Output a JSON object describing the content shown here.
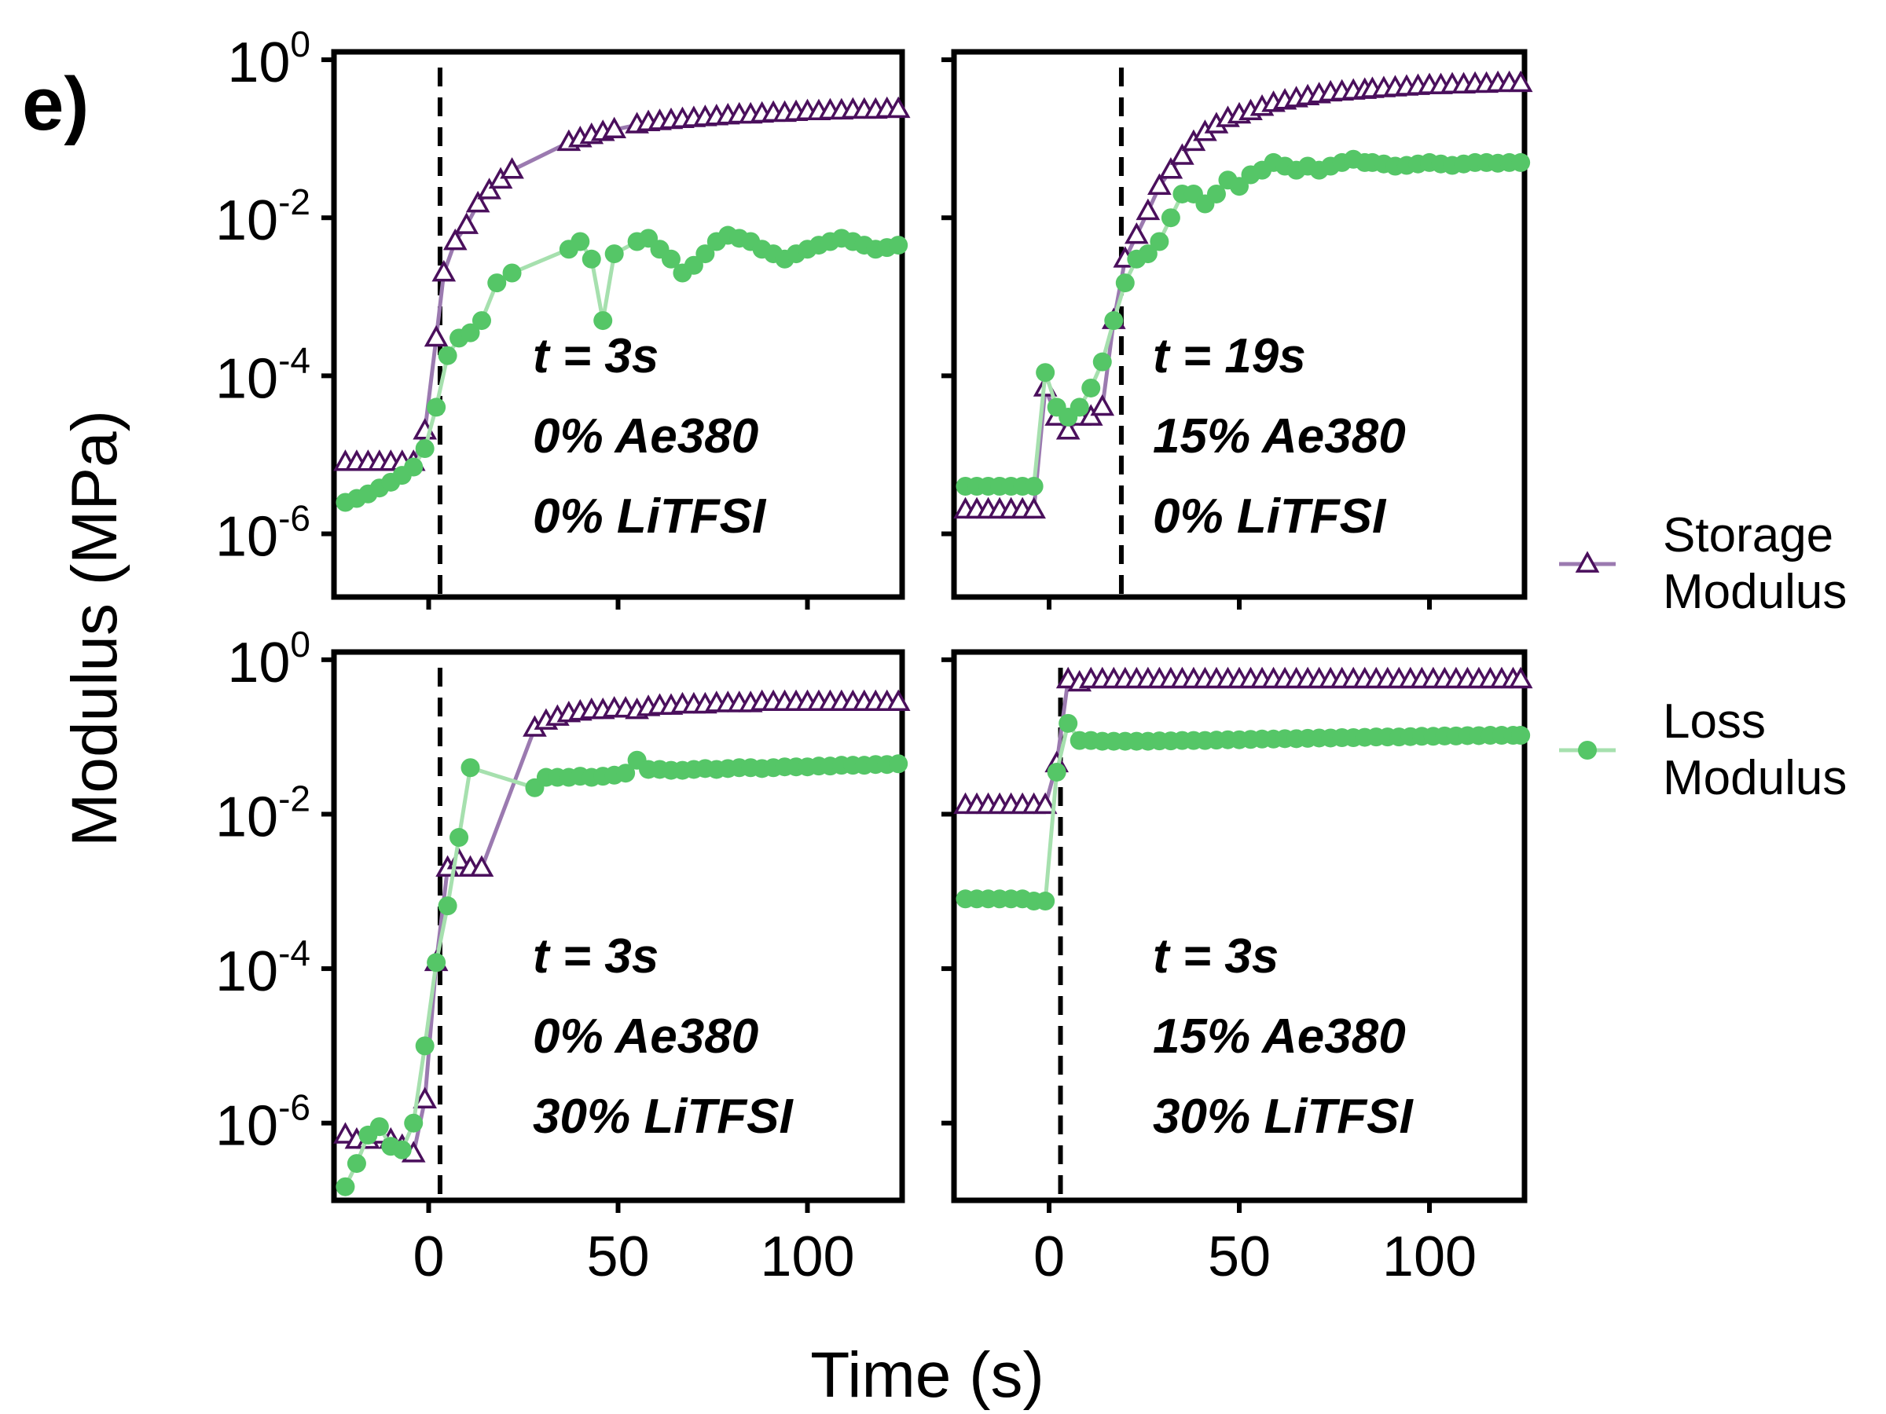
{
  "figure": {
    "panel_letter": "e)",
    "ylabel": "Modulus (MPa)",
    "xlabel": "Time (s)"
  },
  "colors": {
    "storage": "#4a0f5c",
    "storage_line": "#9b7ab0",
    "loss": "#55c667",
    "loss_line": "#a6e0ae",
    "frame": "#000000"
  },
  "legend": {
    "storage": [
      "Storage",
      "Modulus"
    ],
    "loss": [
      "Loss",
      "Modulus"
    ]
  },
  "chart_data": [
    {
      "type": "line",
      "panel": "top-left",
      "xlim": [
        -25,
        125
      ],
      "ylim_log10": [
        -6.8,
        0.1
      ],
      "yscale": "log",
      "yticks": [
        "10^0",
        "10^-2",
        "10^-4",
        "10^-6"
      ],
      "xticks": [],
      "vline_x": 3,
      "annotations": [
        "t = 3s",
        "0% Ae380",
        "0% LiTFSI"
      ],
      "series": [
        {
          "name": "Storage Modulus",
          "x": [
            -22,
            -19,
            -16,
            -13,
            -10,
            -7,
            -4,
            -1,
            2,
            4,
            7,
            10,
            13,
            16,
            19,
            22,
            37,
            40,
            43,
            46,
            49,
            55,
            58,
            61,
            64,
            67,
            70,
            73,
            76,
            79,
            82,
            85,
            88,
            91,
            94,
            97,
            100,
            103,
            106,
            109,
            112,
            115,
            118,
            121,
            124
          ],
          "y": [
            8e-06,
            8e-06,
            8e-06,
            8e-06,
            8e-06,
            8e-06,
            8e-06,
            2e-05,
            0.0003,
            0.002,
            0.005,
            0.008,
            0.015,
            0.022,
            0.03,
            0.04,
            0.09,
            0.1,
            0.11,
            0.12,
            0.13,
            0.15,
            0.16,
            0.165,
            0.17,
            0.175,
            0.18,
            0.185,
            0.19,
            0.195,
            0.2,
            0.2,
            0.205,
            0.21,
            0.21,
            0.215,
            0.22,
            0.22,
            0.225,
            0.225,
            0.23,
            0.23,
            0.23,
            0.235,
            0.235
          ]
        },
        {
          "name": "Loss Modulus",
          "x": [
            -22,
            -19,
            -16,
            -13,
            -10,
            -7,
            -4,
            -1,
            2,
            5,
            8,
            11,
            14,
            18,
            22,
            37,
            40,
            43,
            46,
            49,
            55,
            58,
            61,
            64,
            67,
            70,
            73,
            76,
            79,
            82,
            85,
            88,
            91,
            94,
            97,
            100,
            103,
            106,
            109,
            112,
            115,
            118,
            121,
            124
          ],
          "y": [
            2.5e-06,
            2.8e-06,
            3.2e-06,
            3.8e-06,
            4.5e-06,
            5.5e-06,
            7e-06,
            1.2e-05,
            4e-05,
            0.00018,
            0.0003,
            0.00035,
            0.0005,
            0.0015,
            0.002,
            0.004,
            0.005,
            0.003,
            0.0005,
            0.0035,
            0.005,
            0.0055,
            0.004,
            0.003,
            0.002,
            0.0025,
            0.0035,
            0.005,
            0.006,
            0.0055,
            0.005,
            0.004,
            0.0035,
            0.003,
            0.0035,
            0.004,
            0.0045,
            0.005,
            0.0055,
            0.005,
            0.0045,
            0.004,
            0.0042,
            0.0045
          ]
        }
      ]
    },
    {
      "type": "line",
      "panel": "top-right",
      "xlim": [
        -25,
        125
      ],
      "ylim_log10": [
        -6.8,
        0.1
      ],
      "yscale": "log",
      "yticks": [],
      "xticks": [],
      "vline_x": 19,
      "annotations": [
        "t = 19s",
        "15% Ae380",
        "0% LiTFSI"
      ],
      "series": [
        {
          "name": "Storage Modulus",
          "x": [
            -22,
            -19,
            -16,
            -13,
            -10,
            -7,
            -4,
            -1,
            2,
            5,
            8,
            11,
            14,
            17,
            20,
            23,
            26,
            29,
            32,
            35,
            38,
            41,
            44,
            47,
            50,
            53,
            56,
            59,
            62,
            65,
            68,
            71,
            74,
            77,
            80,
            83,
            85,
            88,
            91,
            94,
            97,
            100,
            103,
            106,
            109,
            112,
            115,
            118,
            121,
            124
          ],
          "y": [
            2e-06,
            2e-06,
            2e-06,
            2e-06,
            2e-06,
            2e-06,
            2e-06,
            7e-05,
            3e-05,
            2e-05,
            3e-05,
            3e-05,
            4e-05,
            0.0005,
            0.003,
            0.006,
            0.012,
            0.025,
            0.04,
            0.06,
            0.09,
            0.12,
            0.15,
            0.18,
            0.2,
            0.22,
            0.25,
            0.28,
            0.3,
            0.32,
            0.34,
            0.36,
            0.38,
            0.39,
            0.4,
            0.41,
            0.42,
            0.43,
            0.44,
            0.45,
            0.46,
            0.47,
            0.47,
            0.48,
            0.48,
            0.49,
            0.49,
            0.5,
            0.5,
            0.5
          ]
        },
        {
          "name": "Loss Modulus",
          "x": [
            -22,
            -19,
            -16,
            -13,
            -10,
            -7,
            -4,
            -1,
            2,
            5,
            8,
            11,
            14,
            17,
            20,
            23,
            26,
            29,
            32,
            35,
            38,
            41,
            44,
            47,
            50,
            53,
            56,
            59,
            62,
            65,
            68,
            71,
            74,
            77,
            80,
            83,
            85,
            88,
            91,
            94,
            97,
            100,
            103,
            106,
            109,
            112,
            115,
            118,
            121,
            124
          ],
          "y": [
            4e-06,
            4e-06,
            4e-06,
            4e-06,
            4e-06,
            4e-06,
            4e-06,
            0.00011,
            4e-05,
            3e-05,
            4e-05,
            7e-05,
            0.00015,
            0.0005,
            0.0015,
            0.003,
            0.0035,
            0.005,
            0.01,
            0.02,
            0.02,
            0.015,
            0.02,
            0.03,
            0.025,
            0.035,
            0.04,
            0.05,
            0.045,
            0.04,
            0.045,
            0.04,
            0.045,
            0.05,
            0.055,
            0.05,
            0.05,
            0.048,
            0.045,
            0.046,
            0.048,
            0.05,
            0.048,
            0.046,
            0.048,
            0.05,
            0.05,
            0.049,
            0.05,
            0.05
          ]
        }
      ]
    },
    {
      "type": "line",
      "panel": "bottom-left",
      "xlim": [
        -25,
        125
      ],
      "ylim_log10": [
        -7.0,
        0.1
      ],
      "yscale": "log",
      "yticks": [
        "10^0",
        "10^-2",
        "10^-4",
        "10^-6"
      ],
      "xticks": [
        "0",
        "50",
        "100"
      ],
      "vline_x": 3,
      "annotations": [
        "t = 3s",
        "0% Ae380",
        "30% LiTFSI"
      ],
      "series": [
        {
          "name": "Storage Modulus",
          "x": [
            -22,
            -19,
            -16,
            -13,
            -10,
            -7,
            -4,
            -1,
            2,
            5,
            8,
            11,
            14,
            28,
            31,
            34,
            37,
            40,
            43,
            46,
            49,
            52,
            55,
            58,
            61,
            64,
            67,
            70,
            73,
            76,
            79,
            82,
            85,
            88,
            91,
            94,
            97,
            100,
            103,
            106,
            109,
            112,
            115,
            118,
            121,
            124
          ],
          "y": [
            7e-07,
            6e-07,
            6e-07,
            7e-07,
            6e-07,
            5e-07,
            4e-07,
            2e-06,
            0.00012,
            0.002,
            0.0025,
            0.002,
            0.002,
            0.13,
            0.16,
            0.18,
            0.2,
            0.21,
            0.22,
            0.22,
            0.23,
            0.23,
            0.22,
            0.24,
            0.25,
            0.25,
            0.26,
            0.26,
            0.26,
            0.27,
            0.27,
            0.27,
            0.27,
            0.28,
            0.28,
            0.28,
            0.28,
            0.28,
            0.28,
            0.28,
            0.28,
            0.28,
            0.28,
            0.28,
            0.28,
            0.28
          ]
        },
        {
          "name": "Loss Modulus",
          "x": [
            -22,
            -19,
            -16,
            -13,
            -10,
            -7,
            -4,
            -1,
            2,
            5,
            8,
            11,
            28,
            31,
            34,
            37,
            40,
            43,
            46,
            49,
            52,
            55,
            58,
            61,
            64,
            67,
            70,
            73,
            76,
            79,
            82,
            85,
            88,
            91,
            94,
            97,
            100,
            103,
            106,
            109,
            112,
            115,
            118,
            121,
            124
          ],
          "y": [
            1.5e-07,
            3e-07,
            7e-07,
            9e-07,
            5e-07,
            4.5e-07,
            1e-06,
            1e-05,
            0.00012,
            0.00065,
            0.005,
            0.04,
            0.022,
            0.03,
            0.03,
            0.03,
            0.031,
            0.03,
            0.031,
            0.032,
            0.034,
            0.05,
            0.038,
            0.038,
            0.037,
            0.037,
            0.038,
            0.039,
            0.038,
            0.039,
            0.04,
            0.04,
            0.039,
            0.04,
            0.041,
            0.041,
            0.041,
            0.042,
            0.042,
            0.043,
            0.043,
            0.043,
            0.044,
            0.044,
            0.045
          ]
        }
      ]
    },
    {
      "type": "line",
      "panel": "bottom-right",
      "xlim": [
        -25,
        125
      ],
      "ylim_log10": [
        -7.0,
        0.1
      ],
      "yscale": "log",
      "yticks": [],
      "xticks": [
        "0",
        "50",
        "100"
      ],
      "vline_x": 3,
      "annotations": [
        "t = 3s",
        "15% Ae380",
        "30% LiTFSI"
      ],
      "series": [
        {
          "name": "Storage Modulus",
          "x": [
            -22,
            -19,
            -16,
            -13,
            -10,
            -7,
            -4,
            -1,
            2,
            5,
            8,
            11,
            14,
            17,
            20,
            23,
            26,
            29,
            32,
            35,
            38,
            41,
            44,
            47,
            50,
            53,
            56,
            59,
            62,
            65,
            68,
            71,
            74,
            77,
            80,
            83,
            86,
            89,
            92,
            95,
            98,
            101,
            104,
            107,
            110,
            113,
            116,
            119,
            122,
            124
          ],
          "y": [
            0.013,
            0.013,
            0.013,
            0.013,
            0.013,
            0.013,
            0.013,
            0.013,
            0.045,
            0.55,
            0.5,
            0.55,
            0.55,
            0.55,
            0.55,
            0.55,
            0.55,
            0.55,
            0.55,
            0.55,
            0.55,
            0.55,
            0.55,
            0.55,
            0.55,
            0.55,
            0.55,
            0.55,
            0.55,
            0.55,
            0.55,
            0.55,
            0.55,
            0.55,
            0.55,
            0.55,
            0.55,
            0.55,
            0.55,
            0.55,
            0.55,
            0.55,
            0.55,
            0.55,
            0.55,
            0.55,
            0.55,
            0.55,
            0.55,
            0.55
          ]
        },
        {
          "name": "Loss Modulus",
          "x": [
            -22,
            -19,
            -16,
            -13,
            -10,
            -7,
            -4,
            -1,
            2,
            5,
            8,
            11,
            14,
            17,
            20,
            23,
            26,
            29,
            32,
            35,
            38,
            41,
            44,
            47,
            50,
            53,
            56,
            59,
            62,
            65,
            68,
            71,
            74,
            77,
            80,
            83,
            86,
            89,
            92,
            95,
            98,
            101,
            104,
            107,
            110,
            113,
            116,
            119,
            122,
            124
          ],
          "y": [
            0.0008,
            0.0008,
            0.0008,
            0.0008,
            0.0008,
            0.0008,
            0.00075,
            0.00075,
            0.035,
            0.15,
            0.09,
            0.09,
            0.088,
            0.088,
            0.088,
            0.088,
            0.088,
            0.089,
            0.089,
            0.09,
            0.09,
            0.09,
            0.091,
            0.092,
            0.092,
            0.093,
            0.094,
            0.094,
            0.095,
            0.095,
            0.096,
            0.097,
            0.097,
            0.098,
            0.098,
            0.099,
            0.1,
            0.1,
            0.1,
            0.101,
            0.102,
            0.102,
            0.103,
            0.103,
            0.104,
            0.104,
            0.105,
            0.105,
            0.105,
            0.105
          ]
        }
      ]
    }
  ]
}
